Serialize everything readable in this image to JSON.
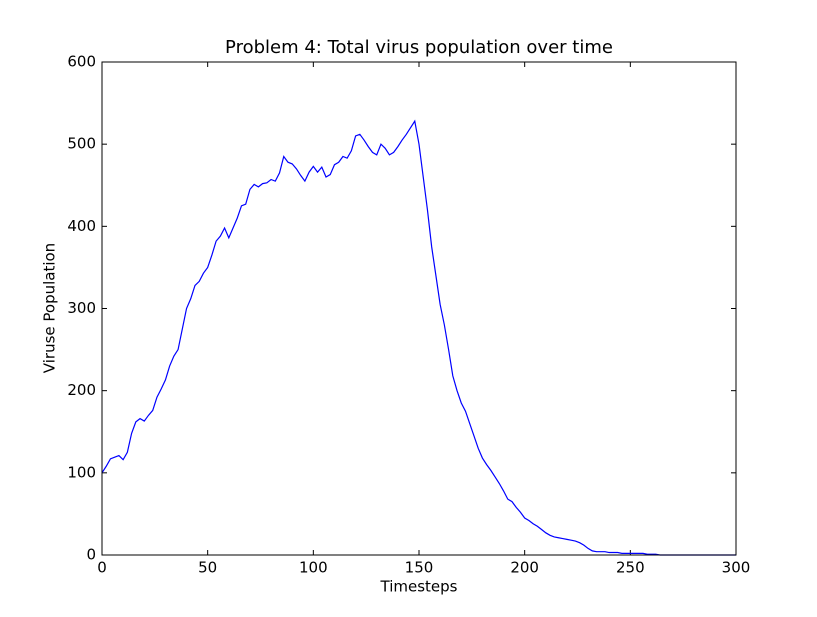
{
  "chart_data": {
    "type": "line",
    "title": "Problem 4: Total virus population over time",
    "xlabel": "Timesteps",
    "ylabel": "Viruse Population",
    "x": [
      0,
      2,
      4,
      6,
      8,
      10,
      12,
      14,
      16,
      18,
      20,
      22,
      24,
      26,
      28,
      30,
      32,
      34,
      36,
      38,
      40,
      42,
      44,
      46,
      48,
      50,
      52,
      54,
      56,
      58,
      60,
      62,
      64,
      66,
      68,
      70,
      72,
      74,
      76,
      78,
      80,
      82,
      84,
      86,
      88,
      90,
      92,
      94,
      96,
      98,
      100,
      102,
      104,
      106,
      108,
      110,
      112,
      114,
      116,
      118,
      120,
      122,
      124,
      126,
      128,
      130,
      132,
      134,
      136,
      138,
      140,
      142,
      144,
      146,
      148,
      150,
      152,
      154,
      156,
      158,
      160,
      162,
      164,
      166,
      168,
      170,
      172,
      174,
      176,
      178,
      180,
      182,
      184,
      186,
      188,
      190,
      192,
      194,
      196,
      198,
      200,
      202,
      204,
      206,
      208,
      210,
      212,
      214,
      216,
      218,
      220,
      222,
      224,
      226,
      228,
      230,
      232,
      234,
      236,
      238,
      240,
      242,
      244,
      246,
      248,
      250,
      252,
      254,
      256,
      258,
      260,
      262,
      264,
      266,
      268,
      270,
      272,
      274,
      276,
      278,
      280,
      282,
      284,
      286,
      288,
      290,
      292,
      294,
      296,
      298,
      300
    ],
    "values": [
      100,
      108,
      117,
      119,
      121,
      116,
      125,
      148,
      162,
      166,
      163,
      170,
      176,
      192,
      202,
      213,
      230,
      242,
      250,
      275,
      300,
      312,
      328,
      333,
      343,
      350,
      365,
      382,
      388,
      398,
      386,
      398,
      410,
      425,
      427,
      445,
      451,
      448,
      452,
      453,
      457,
      455,
      465,
      485,
      478,
      476,
      470,
      462,
      455,
      466,
      473,
      466,
      472,
      460,
      463,
      475,
      478,
      485,
      483,
      492,
      510,
      512,
      505,
      497,
      490,
      487,
      500,
      495,
      487,
      490,
      497,
      505,
      512,
      520,
      528,
      500,
      460,
      420,
      375,
      340,
      305,
      280,
      250,
      218,
      200,
      185,
      175,
      160,
      145,
      130,
      118,
      110,
      103,
      95,
      87,
      78,
      68,
      65,
      58,
      52,
      45,
      42,
      38,
      35,
      31,
      27,
      24,
      22,
      21,
      20,
      19,
      18,
      17,
      15,
      12,
      8,
      5,
      4,
      4,
      4,
      3,
      3,
      3,
      2,
      2,
      2,
      2,
      2,
      2,
      1,
      1,
      1,
      0,
      0,
      0,
      0,
      0,
      0,
      0,
      0,
      0,
      0,
      0,
      0,
      0,
      0,
      0,
      0,
      0,
      0,
      0
    ],
    "color": "#0000ff",
    "xlim": [
      0,
      300
    ],
    "xticks": [
      0,
      50,
      100,
      150,
      200,
      250,
      300
    ],
    "ylim": [
      0,
      600
    ],
    "yticks": [
      0,
      100,
      200,
      300,
      400,
      500,
      600
    ],
    "grid": false
  }
}
